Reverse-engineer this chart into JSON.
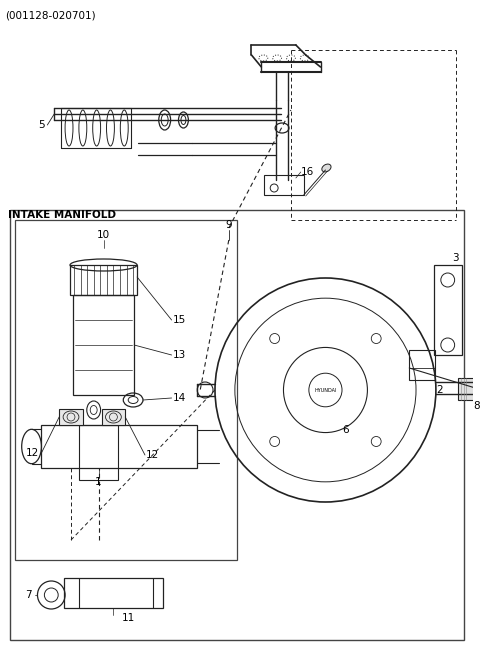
{
  "title": "(001128-020701)",
  "bg_color": "#ffffff",
  "line_color": "#222222",
  "label_color": "#000000",
  "intake_manifold_label": "INTAKE MANIFOLD",
  "figsize": [
    4.8,
    6.55
  ],
  "dpi": 100,
  "xlim": [
    0,
    480
  ],
  "ylim": [
    0,
    655
  ]
}
